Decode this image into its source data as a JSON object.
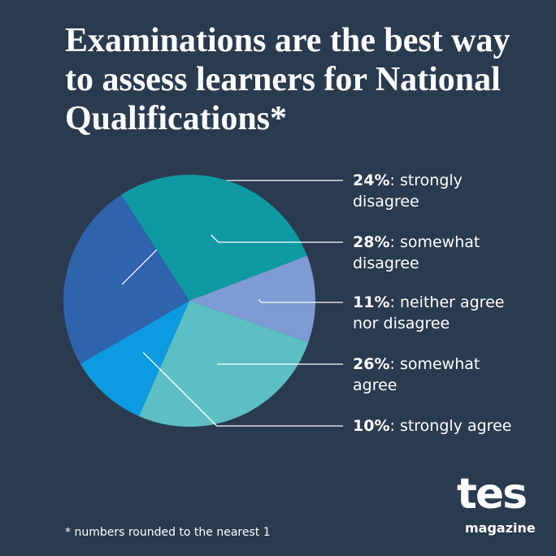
{
  "chart_data": {
    "type": "pie",
    "title": "Examinations are the best way to assess learners for National Qualifications*",
    "categories": [
      "strongly disagree",
      "somewhat disagree",
      "neither agree nor disagree",
      "somewhat agree",
      "strongly agree"
    ],
    "values": [
      24,
      28,
      11,
      26,
      10
    ],
    "value_labels": [
      "24%",
      "28%",
      "11%",
      "26%",
      "10%"
    ],
    "label_separator": ": ",
    "colors": [
      "#2f63ad",
      "#0f9aa3",
      "#7f9bd3",
      "#5cbfc3",
      "#0c9ae0"
    ],
    "footnote": "* numbers rounded to the nearest 1"
  },
  "logo": {
    "brand": "tes",
    "subtitle": "magazine"
  }
}
